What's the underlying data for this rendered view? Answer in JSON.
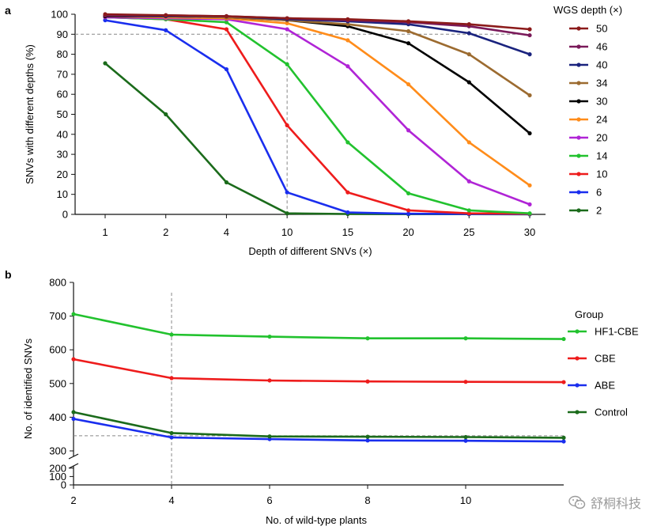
{
  "panel_labels": [
    "a",
    "b"
  ],
  "watermark": {
    "text": "舒桐科技",
    "icon": "wechat-icon"
  },
  "chart_data": [
    {
      "type": "line",
      "panel": "a",
      "xlabel": "Depth of different SNVs (×)",
      "ylabel": "SNVs with different depths (%)",
      "categories": [
        "1",
        "2",
        "4",
        "10",
        "15",
        "20",
        "25",
        "30"
      ],
      "ylim": [
        0,
        100
      ],
      "yticks": [
        0,
        10,
        20,
        30,
        40,
        50,
        60,
        70,
        80,
        90,
        100
      ],
      "reference_lines": {
        "x_category": "10",
        "y": 90
      },
      "legend_title": "WGS depth (×)",
      "legend_position": "right",
      "series": [
        {
          "name": "50",
          "color": "#8b1a1a",
          "values": [
            100,
            99.5,
            99,
            98,
            97.5,
            96.5,
            95,
            92.5
          ]
        },
        {
          "name": "46",
          "color": "#7a1a5a",
          "values": [
            99.5,
            99.5,
            99,
            98,
            97,
            96,
            94,
            89.5
          ]
        },
        {
          "name": "40",
          "color": "#1a237e",
          "values": [
            99.5,
            99,
            99,
            97.5,
            96.5,
            95,
            90.5,
            80
          ]
        },
        {
          "name": "34",
          "color": "#9c6b30",
          "values": [
            99.5,
            99,
            98.5,
            97,
            95,
            91.5,
            80,
            59.5
          ]
        },
        {
          "name": "30",
          "color": "#000000",
          "values": [
            99,
            99,
            98.5,
            97,
            94,
            85.5,
            66,
            40.5
          ]
        },
        {
          "name": "24",
          "color": "#ff8c1a",
          "values": [
            99,
            98.5,
            98,
            95.5,
            87,
            65,
            36,
            14.5
          ]
        },
        {
          "name": "20",
          "color": "#b024d6",
          "values": [
            98.5,
            98,
            97.5,
            92.5,
            74,
            42,
            16.5,
            5
          ]
        },
        {
          "name": "14",
          "color": "#22c22e",
          "values": [
            98.5,
            97.5,
            96,
            75,
            36,
            10.5,
            2,
            0.5
          ]
        },
        {
          "name": "10",
          "color": "#ee1c1c",
          "values": [
            98.5,
            97.5,
            92.5,
            44.5,
            11,
            2,
            0.5,
            0.3
          ]
        },
        {
          "name": "6",
          "color": "#1a2eee",
          "values": [
            97,
            92,
            72.5,
            11,
            1,
            0.3,
            0.2,
            0.1
          ]
        },
        {
          "name": "2",
          "color": "#1b6b1b",
          "values": [
            75.5,
            50,
            16,
            0.5,
            0.2,
            0.1,
            0.1,
            0
          ]
        }
      ]
    },
    {
      "type": "line",
      "panel": "b",
      "xlabel": "No. of wild-type plants",
      "ylabel": "No. of identified SNVs",
      "x": [
        2,
        4,
        6,
        8,
        10,
        12
      ],
      "xticks": [
        2,
        4,
        6,
        8,
        10
      ],
      "xlim": [
        2,
        12
      ],
      "ylim": [
        0,
        800
      ],
      "yticks_upper": [
        300,
        400,
        500,
        600,
        700,
        800
      ],
      "yticks_lower": [
        0,
        100,
        200
      ],
      "axis_break": [
        220,
        280
      ],
      "reference_lines": {
        "x": 4,
        "y": 345
      },
      "legend_title": "Group",
      "legend_position": "right",
      "series": [
        {
          "name": "HF1-CBE",
          "color": "#22c22e",
          "values": [
            706,
            645,
            639,
            634,
            634,
            632
          ]
        },
        {
          "name": "CBE",
          "color": "#ee1c1c",
          "values": [
            572,
            516,
            509,
            506,
            505,
            504
          ]
        },
        {
          "name": "ABE",
          "color": "#1a2eee",
          "values": [
            395,
            340,
            335,
            331,
            330,
            328
          ]
        },
        {
          "name": "Control",
          "color": "#1b6b1b",
          "values": [
            415,
            353,
            343,
            342,
            341,
            339
          ]
        }
      ]
    }
  ]
}
